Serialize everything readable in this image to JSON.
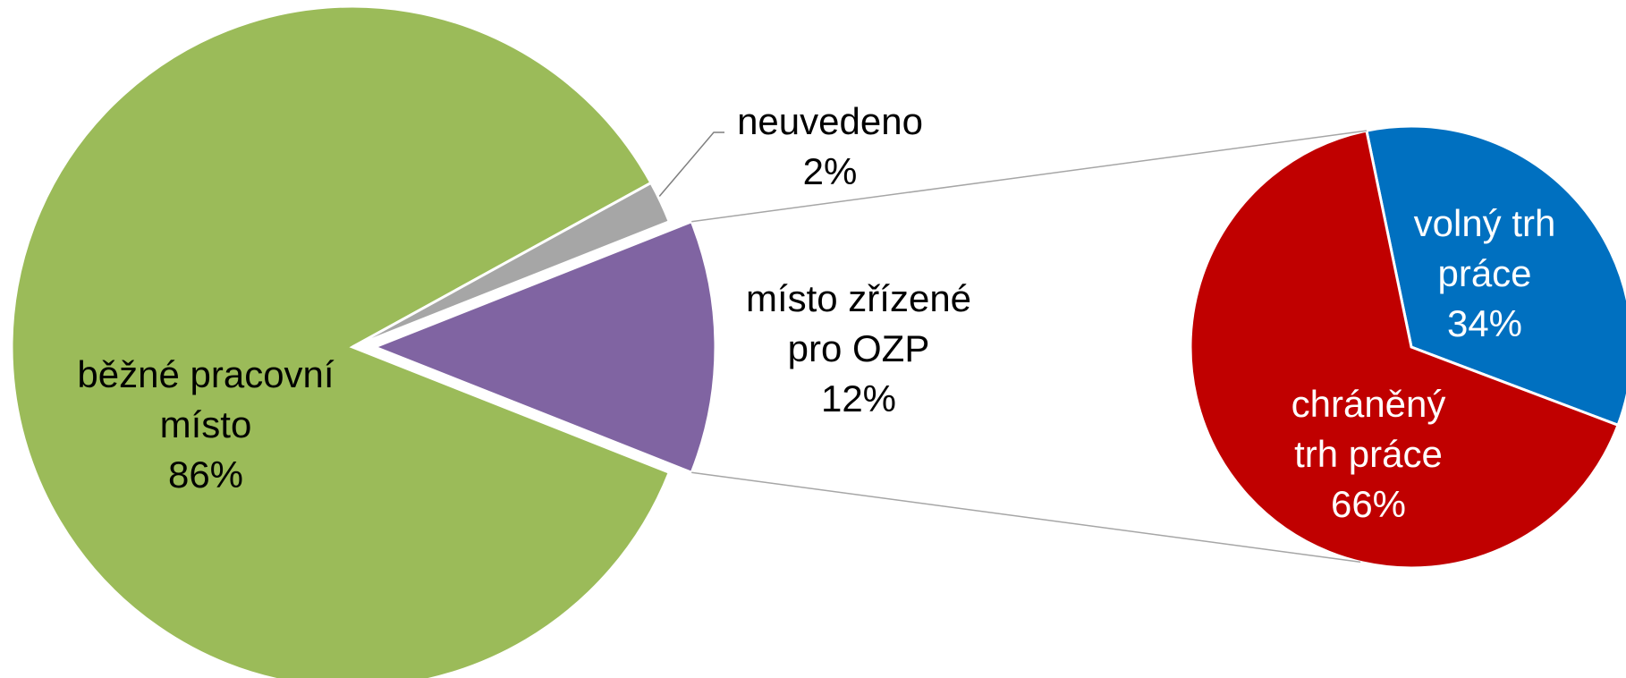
{
  "chart_data": [
    {
      "type": "pie",
      "categories": [
        "běžné pracovní místo",
        "neuvedeno",
        "místo zřízené pro OZP"
      ],
      "values": [
        86,
        2,
        12
      ],
      "value_labels": [
        "86%",
        "2%",
        "12%"
      ],
      "colors": [
        "#9bbb59",
        "#a6a6a6",
        "#8064a2"
      ]
    },
    {
      "type": "pie",
      "categories": [
        "volný trh práce",
        "chráněný trh práce"
      ],
      "values": [
        34,
        66
      ],
      "value_labels": [
        "34%",
        "66%"
      ],
      "colors": [
        "#0070c0",
        "#c00000"
      ]
    }
  ]
}
